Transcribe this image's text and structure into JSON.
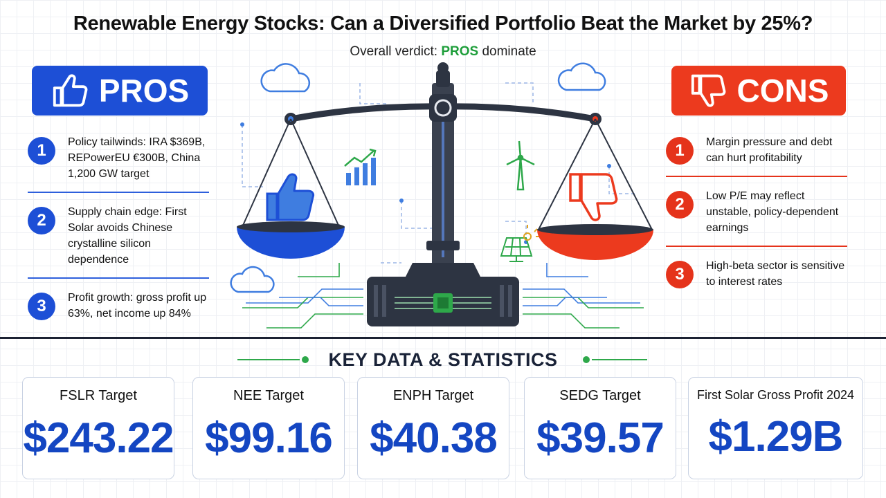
{
  "header": {
    "title": "Renewable Energy Stocks: Can a Diversified Portfolio Beat the Market by 25%?",
    "verdict_prefix": "Overall verdict:",
    "verdict_highlight": "PROS",
    "verdict_suffix": "dominate"
  },
  "pros": {
    "label": "PROS",
    "icon": "thumbs-up-icon",
    "color": "#1d4fd6",
    "items": [
      {
        "num": "1",
        "text": "Policy tailwinds: IRA $369B, REPowerEU €300B, China 1,200 GW target"
      },
      {
        "num": "2",
        "text": "Supply chain edge: First Solar avoids Chinese crystalline silicon dependence"
      },
      {
        "num": "3",
        "text": "Profit growth: gross profit up 63%, net income up 84%"
      }
    ]
  },
  "cons": {
    "label": "CONS",
    "icon": "thumbs-down-icon",
    "color": "#ec3a1e",
    "items": [
      {
        "num": "1",
        "text": "Margin pressure and debt can hurt profitability"
      },
      {
        "num": "2",
        "text": "Low P/E may reflect unstable, policy-dependent earnings"
      },
      {
        "num": "3",
        "text": "High-beta sector is sensitive to interest rates"
      }
    ]
  },
  "illustration": {
    "icons": [
      "balance-scale-icon",
      "thumbs-up-icon",
      "thumbs-down-icon",
      "growth-chart-icon",
      "wind-turbine-icon",
      "solar-panel-icon",
      "chip-icon",
      "cloud-icon"
    ]
  },
  "key_stats": {
    "title": "KEY DATA & STATISTICS",
    "cards": [
      {
        "label": "FSLR Target",
        "value": "$243.22"
      },
      {
        "label": "NEE Target",
        "value": "$99.16"
      },
      {
        "label": "ENPH Target",
        "value": "$40.38"
      },
      {
        "label": "SEDG Target",
        "value": "$39.57"
      },
      {
        "label": "First Solar Gross Profit 2024",
        "value": "$1.29B"
      }
    ]
  }
}
